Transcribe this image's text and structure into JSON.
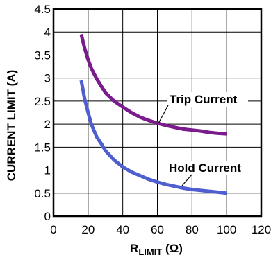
{
  "chart_data": {
    "type": "line",
    "title": "",
    "xlabel": "R",
    "xlabel_sub": "LIMIT",
    "xlabel_unit": " (Ω)",
    "ylabel": "CURRENT LIMIT (A)",
    "xlim": [
      0,
      120
    ],
    "ylim": [
      0,
      4.5
    ],
    "x_ticks": [
      0,
      20,
      40,
      60,
      80,
      100,
      120
    ],
    "x_tick_labels": [
      "0",
      "20",
      "40",
      "60",
      "80",
      "100",
      "120"
    ],
    "y_ticks": [
      0,
      0.5,
      1,
      1.5,
      2,
      2.5,
      3,
      3.5,
      4,
      4.5
    ],
    "y_tick_labels": [
      "0",
      "0.5",
      "1",
      "1.5",
      "2",
      "2.5",
      "3",
      "3.5",
      "4",
      "4.5"
    ],
    "grid": true,
    "series": [
      {
        "name": "Trip Current",
        "color": "#7b1c8c",
        "x": [
          16,
          18,
          20,
          22,
          25,
          28,
          30,
          35,
          40,
          45,
          50,
          55,
          60,
          65,
          70,
          75,
          80,
          85,
          90,
          95,
          100
        ],
        "y": [
          3.95,
          3.65,
          3.4,
          3.2,
          2.98,
          2.8,
          2.68,
          2.5,
          2.37,
          2.25,
          2.15,
          2.08,
          2.02,
          1.97,
          1.93,
          1.89,
          1.87,
          1.85,
          1.82,
          1.8,
          1.79
        ]
      },
      {
        "name": "Hold Current",
        "color": "#4f5fcf",
        "x": [
          16,
          18,
          20,
          22,
          25,
          28,
          30,
          35,
          40,
          45,
          50,
          55,
          60,
          65,
          70,
          75,
          80,
          85,
          90,
          95,
          100
        ],
        "y": [
          2.95,
          2.55,
          2.25,
          1.98,
          1.72,
          1.55,
          1.42,
          1.22,
          1.07,
          0.96,
          0.88,
          0.8,
          0.74,
          0.69,
          0.65,
          0.61,
          0.58,
          0.56,
          0.54,
          0.52,
          0.5
        ]
      }
    ],
    "annotations": [
      {
        "text": "Trip Current",
        "series": "Trip Current"
      },
      {
        "text": "Hold Current",
        "series": "Hold Current"
      }
    ]
  }
}
